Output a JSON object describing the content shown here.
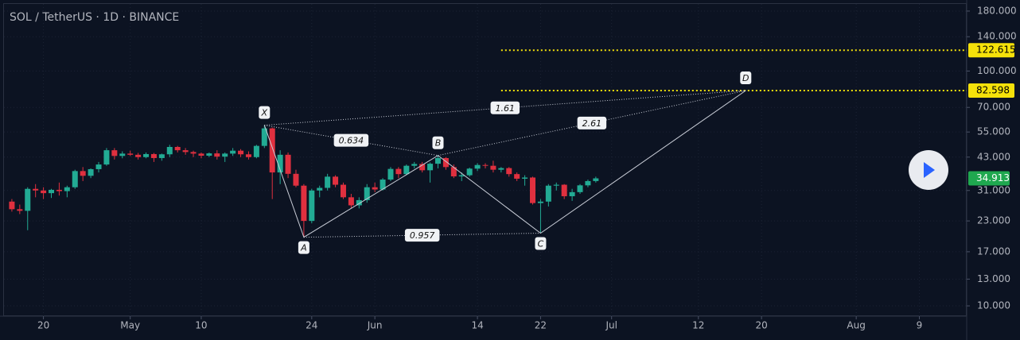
{
  "chart_data": {
    "type": "candlestick",
    "title": "SOL / TetherUS · 1D · BINANCE",
    "log_scale": true,
    "grid": true,
    "up_color": "#22ab94",
    "down_color": "#e0303f",
    "x": [
      "04-16",
      "04-17",
      "04-18",
      "04-19",
      "04-20",
      "04-21",
      "04-22",
      "04-23",
      "04-24",
      "04-25",
      "04-26",
      "04-27",
      "04-28",
      "04-29",
      "04-30",
      "05-01",
      "05-02",
      "05-03",
      "05-04",
      "05-05",
      "05-06",
      "05-07",
      "05-08",
      "05-09",
      "05-10",
      "05-11",
      "05-12",
      "05-13",
      "05-14",
      "05-15",
      "05-16",
      "05-17",
      "05-18",
      "05-19",
      "05-20",
      "05-21",
      "05-22",
      "05-23",
      "05-24",
      "05-25",
      "05-26",
      "05-27",
      "05-28",
      "05-29",
      "05-30",
      "05-31",
      "06-01",
      "06-02",
      "06-03",
      "06-04",
      "06-05",
      "06-06",
      "06-07",
      "06-08",
      "06-09",
      "06-10",
      "06-11",
      "06-12",
      "06-13",
      "06-14",
      "06-15",
      "06-16",
      "06-17",
      "06-18",
      "06-19",
      "06-20",
      "06-21",
      "06-22",
      "06-23",
      "06-24",
      "06-25",
      "06-26",
      "06-27",
      "06-28",
      "06-29"
    ],
    "open": [
      27.8,
      25.8,
      25.4,
      31.5,
      31,
      30.2,
      31.2,
      30.8,
      32,
      37.5,
      35.8,
      38.2,
      40,
      46,
      43.5,
      44.5,
      44,
      43,
      44.3,
      42.6,
      44.2,
      47.5,
      46,
      45.2,
      44.5,
      43.6,
      44.6,
      43.2,
      44.5,
      45.8,
      44.2,
      43,
      48,
      57,
      37,
      44,
      36.5,
      32.5,
      23,
      31,
      31.8,
      35.5,
      32.8,
      29,
      26.8,
      28.2,
      32,
      31.3,
      34.5,
      38.3,
      36.4,
      39.5,
      40.2,
      37.8,
      40.3,
      42.6,
      39,
      35.6,
      36,
      38.4,
      39.8,
      39.5,
      38,
      38.6,
      36.4,
      34.8,
      35.2,
      27.4,
      27.8,
      32.5,
      32.8,
      29.3,
      30.5,
      32.6,
      34
    ],
    "high": [
      28.5,
      27,
      32,
      33,
      32,
      31.5,
      33.5,
      32.5,
      38,
      39,
      38.5,
      41,
      47,
      47,
      45.5,
      45.8,
      44.8,
      45,
      44.8,
      44.5,
      48.5,
      48,
      47,
      45.8,
      45,
      45,
      46,
      45,
      47,
      46.5,
      45.5,
      48.5,
      58.8,
      57.5,
      46,
      45,
      38,
      33,
      31.5,
      32.5,
      36.5,
      36,
      33.5,
      30,
      29,
      33,
      33.5,
      35,
      39,
      39,
      40,
      41,
      41,
      40.8,
      43.7,
      43,
      40,
      37,
      38.8,
      40.5,
      40.5,
      41.5,
      39,
      39,
      37,
      36,
      35.5,
      28.5,
      33,
      33.5,
      33,
      31.5,
      33,
      34.5,
      35.5
    ],
    "low": [
      25.2,
      24.6,
      21,
      29,
      28.5,
      28.8,
      29.5,
      29,
      31.5,
      34,
      35,
      37,
      39.5,
      42,
      42.5,
      43.5,
      42,
      42.5,
      41,
      41.5,
      43,
      45,
      44,
      43,
      42.5,
      43,
      42,
      41,
      43.5,
      43,
      42,
      42.5,
      47,
      28.5,
      33,
      35,
      32,
      19.6,
      22.5,
      29,
      31,
      32,
      28.5,
      26,
      26,
      27.5,
      30.5,
      31,
      34,
      35,
      36,
      38.5,
      37,
      33.5,
      38.5,
      38,
      35,
      34,
      35.5,
      37.5,
      38.5,
      37,
      37,
      35.5,
      34,
      32.5,
      27,
      20.4,
      26.5,
      31,
      28.5,
      28,
      30,
      32,
      33.5
    ],
    "close": [
      25.8,
      25.4,
      31.5,
      31,
      30.2,
      31.2,
      30.8,
      32,
      37.5,
      35.8,
      38.2,
      40,
      46,
      43.5,
      44.5,
      44,
      43,
      44.3,
      42.6,
      44.2,
      47.5,
      46,
      45.2,
      44.5,
      43.6,
      44.6,
      43.2,
      44.5,
      45.8,
      44.2,
      43,
      48,
      57,
      37,
      44,
      36.5,
      32.5,
      23,
      31,
      31.8,
      35.5,
      32.8,
      29,
      26.8,
      28.2,
      32,
      31.3,
      34.5,
      38.3,
      36.4,
      39.5,
      40.2,
      37.8,
      40.3,
      42.6,
      39,
      35.6,
      36,
      38.4,
      39.8,
      39.5,
      38,
      38.6,
      36.4,
      34.8,
      35.2,
      27.4,
      27.8,
      32.5,
      32.8,
      29.3,
      30.5,
      32.6,
      34,
      34.913
    ],
    "ylim": [
      9.04,
      193
    ],
    "yticks": [
      {
        "value": 180,
        "label": "180.000"
      },
      {
        "value": 140,
        "label": "140.000"
      },
      {
        "value": 100,
        "label": "100.000"
      },
      {
        "value": 70,
        "label": "70.000"
      },
      {
        "value": 55,
        "label": "55.000"
      },
      {
        "value": 43,
        "label": "43.000"
      },
      {
        "value": 31,
        "label": "31.000"
      },
      {
        "value": 23,
        "label": "23.000"
      },
      {
        "value": 17,
        "label": "17.000"
      },
      {
        "value": 13,
        "label": "13.000"
      },
      {
        "value": 10,
        "label": "10.000"
      }
    ],
    "xlim": [
      "04-15",
      "08-15"
    ],
    "xticks": [
      {
        "value": "04-20",
        "label": "20"
      },
      {
        "value": "05-01",
        "label": "May"
      },
      {
        "value": "05-10",
        "label": "10"
      },
      {
        "value": "05-24",
        "label": "24"
      },
      {
        "value": "06-01",
        "label": "Jun"
      },
      {
        "value": "06-14",
        "label": "14"
      },
      {
        "value": "06-22",
        "label": "22"
      },
      {
        "value": "07-01",
        "label": "Jul"
      },
      {
        "value": "07-12",
        "label": "12"
      },
      {
        "value": "07-20",
        "label": "20"
      },
      {
        "value": "08-01",
        "label": "Aug"
      },
      {
        "value": "08-09",
        "label": "9"
      }
    ],
    "pattern": {
      "color": "#c8ccd6",
      "points": [
        {
          "label": "X",
          "x": "05-18",
          "y": 58.8
        },
        {
          "label": "A",
          "x": "05-23",
          "y": 19.6
        },
        {
          "label": "B",
          "x": "06-09",
          "y": 43.7
        },
        {
          "label": "C",
          "x": "06-22",
          "y": 20.4
        },
        {
          "label": "D",
          "x": "07-18",
          "y": 82.598
        }
      ],
      "ratios": [
        {
          "value": 0.634,
          "from": 0,
          "to": 2
        },
        {
          "value": 0.957,
          "from": 1,
          "to": 3
        },
        {
          "value": 1.61,
          "from": 0,
          "to": 4
        },
        {
          "value": 2.61,
          "from": 2,
          "to": 4
        }
      ]
    },
    "levels": {
      "color": "#f5e10a",
      "start": "06-17",
      "values": [
        122.615,
        82.598
      ]
    },
    "last_price_color": "#1fa84f"
  }
}
